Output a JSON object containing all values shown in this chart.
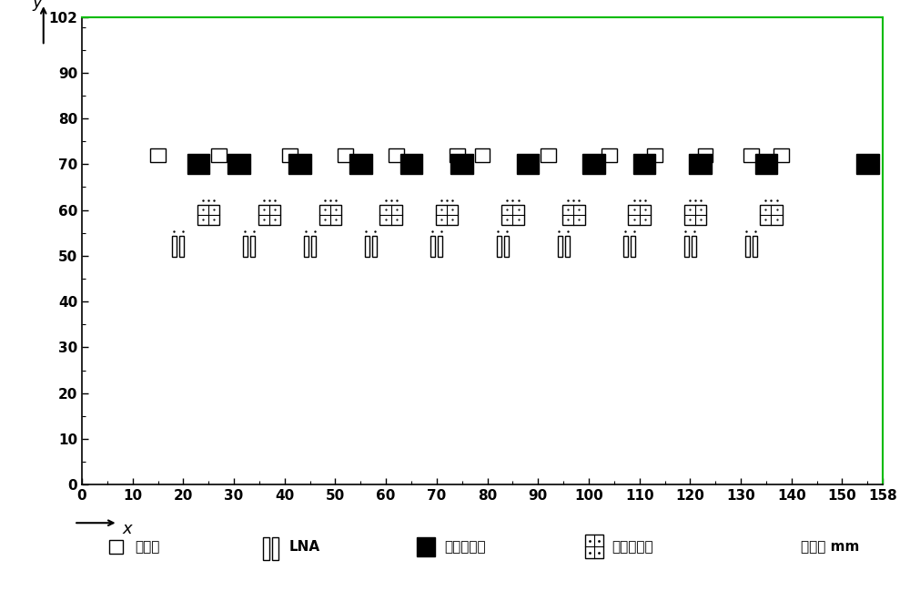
{
  "xlim": [
    0,
    158
  ],
  "ylim": [
    0,
    102
  ],
  "xticks": [
    0,
    10,
    20,
    30,
    40,
    50,
    60,
    70,
    80,
    90,
    100,
    110,
    120,
    130,
    140,
    150,
    158
  ],
  "yticks": [
    0,
    10,
    20,
    30,
    40,
    50,
    60,
    70,
    80,
    90,
    102
  ],
  "unit_label": "单位： mm",
  "phase_shifter_label": "移相器",
  "lna_label": "LNA",
  "pa_label": "功率放大器",
  "da_label": "驱动放大器",
  "phase_shifter_positions": [
    [
      15,
      72
    ],
    [
      27,
      72
    ],
    [
      41,
      72
    ],
    [
      52,
      72
    ],
    [
      62,
      72
    ],
    [
      74,
      72
    ],
    [
      79,
      72
    ],
    [
      92,
      72
    ],
    [
      104,
      72
    ],
    [
      113,
      72
    ],
    [
      123,
      72
    ],
    [
      132,
      72
    ],
    [
      138,
      72
    ]
  ],
  "pa_positions": [
    [
      23,
      70
    ],
    [
      31,
      70
    ],
    [
      43,
      70
    ],
    [
      55,
      70
    ],
    [
      65,
      70
    ],
    [
      75,
      70
    ],
    [
      88,
      70
    ],
    [
      101,
      70
    ],
    [
      111,
      70
    ],
    [
      122,
      70
    ],
    [
      135,
      70
    ],
    [
      155,
      70
    ]
  ],
  "lna_positions": [
    [
      19,
      52
    ],
    [
      33,
      52
    ],
    [
      45,
      52
    ],
    [
      57,
      52
    ],
    [
      70,
      52
    ],
    [
      83,
      52
    ],
    [
      95,
      52
    ],
    [
      108,
      52
    ],
    [
      120,
      52
    ],
    [
      132,
      52
    ]
  ],
  "da_positions": [
    [
      25,
      59
    ],
    [
      37,
      59
    ],
    [
      49,
      59
    ],
    [
      61,
      59
    ],
    [
      72,
      59
    ],
    [
      85,
      59
    ],
    [
      97,
      59
    ],
    [
      110,
      59
    ],
    [
      121,
      59
    ],
    [
      136,
      59
    ]
  ],
  "bg_color": "#ffffff",
  "border_color_green": "#00bb00",
  "border_color_black": "#000000"
}
